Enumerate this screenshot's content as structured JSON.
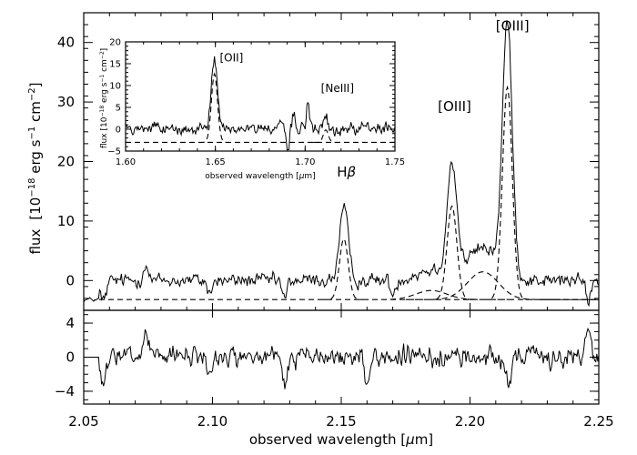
{
  "chart_data": [
    {
      "type": "line",
      "role": "main-spectrum",
      "title": "",
      "xlabel": "observed wavelength [μm]",
      "ylabel": "flux [10^-18 erg s^-1 cm^-2]",
      "ylabel_parts": {
        "flux": "flux",
        "unit_open": "[10",
        "exp1": "−18",
        "erg": " erg s",
        "exp2": "−1",
        "cm": " cm",
        "exp3": "−2",
        "unit_close": "]"
      },
      "xlabel_parts": {
        "text": "observed wavelength [",
        "mu": "μ",
        "unit": "m]"
      },
      "xlim": [
        2.05,
        2.25
      ],
      "ylim": [
        -5,
        45
      ],
      "x_ticks": [
        2.05,
        2.1,
        2.15,
        2.2,
        2.25
      ],
      "x_tick_labels": [
        "2.05",
        "2.10",
        "2.15",
        "2.20",
        "2.25"
      ],
      "y_ticks": [
        0,
        10,
        20,
        30,
        40
      ],
      "y_tick_labels": [
        "0",
        "10",
        "20",
        "30",
        "40"
      ],
      "continuum_offset": -3.2,
      "continuum_start": 2.056,
      "emission_lines": [
        {
          "label": "Hβ",
          "label_base": "H",
          "label_greek": "β",
          "center": 2.151,
          "amplitude": 12.0,
          "sigma": 0.0017,
          "label_x": 2.152,
          "label_y": 17.5
        },
        {
          "label": "[OIII]",
          "center": 2.193,
          "amplitude": 18.5,
          "sigma": 0.0019,
          "label_x": 2.194,
          "label_y": 28.5
        },
        {
          "label": "[OIII]",
          "center": 2.2145,
          "amplitude": 42.0,
          "sigma": 0.0019,
          "label_x": 2.2165,
          "label_y": 42.0
        },
        {
          "label": "",
          "center": 2.185,
          "amplitude": 1.8,
          "sigma": 0.006
        },
        {
          "label": "",
          "center": 2.205,
          "amplitude": 5.5,
          "sigma": 0.006
        }
      ],
      "spectrum_features": [
        {
          "x": 2.0575,
          "depth": -3.5,
          "width": 0.0012
        },
        {
          "x": 2.074,
          "depth": 3.0,
          "width": 0.0009
        },
        {
          "x": 2.128,
          "depth": -3.2,
          "width": 0.0009
        },
        {
          "x": 2.099,
          "depth": -2.2,
          "width": 0.0009
        },
        {
          "x": 2.246,
          "depth": -3.0,
          "width": 0.0011
        },
        {
          "x": 2.17,
          "depth": -2.5,
          "width": 0.0009
        }
      ],
      "noise_amplitude": 1.1
    },
    {
      "type": "line",
      "role": "residuals",
      "xlim": [
        2.05,
        2.25
      ],
      "ylim": [
        -5.5,
        5.5
      ],
      "y_ticks": [
        -4,
        0,
        4
      ],
      "y_tick_labels": [
        "−4",
        "0",
        "4"
      ],
      "features": [
        {
          "x": 2.0575,
          "depth": -3.6,
          "width": 0.0012
        },
        {
          "x": 2.074,
          "depth": 3.0,
          "width": 0.0009
        },
        {
          "x": 2.128,
          "depth": -3.5,
          "width": 0.0009
        },
        {
          "x": 2.099,
          "depth": -2.0,
          "width": 0.0009
        },
        {
          "x": 2.246,
          "depth": 3.2,
          "width": 0.0009
        },
        {
          "x": 2.16,
          "depth": -2.6,
          "width": 0.0009
        },
        {
          "x": 2.215,
          "depth": -2.7,
          "width": 0.0009
        }
      ],
      "noise_amplitude": 1.1
    },
    {
      "type": "line",
      "role": "inset-spectrum",
      "xlabel": "observed wavelength [μm]",
      "xlabel_parts": {
        "text": "observed wavelength [",
        "mu": "μ",
        "unit": "m]"
      },
      "ylabel": "flux [10^-18 erg s^-1 cm^-2]",
      "ylabel_parts": {
        "flux": "flux",
        "unit_open": "[10",
        "exp1": "−18",
        "erg": " erg s",
        "exp2": "−1",
        "cm": " cm",
        "exp3": "−2",
        "unit_close": "]"
      },
      "xlim": [
        1.6,
        1.75
      ],
      "ylim": [
        -5,
        20
      ],
      "x_ticks": [
        1.6,
        1.65,
        1.7,
        1.75
      ],
      "x_tick_labels": [
        "1.60",
        "1.65",
        "1.70",
        "1.75"
      ],
      "y_ticks": [
        -5,
        0,
        5,
        10,
        15,
        20
      ],
      "y_tick_labels": [
        "−5",
        "0",
        "5",
        "10",
        "15",
        "20"
      ],
      "continuum_offset": -3.0,
      "emission_lines": [
        {
          "label": "[OII]",
          "center": 1.6495,
          "amplitude": 16.5,
          "sigma": 0.0017,
          "label_x": 1.659,
          "label_y": 15.5
        },
        {
          "label": "[NeIII]",
          "center": 1.7115,
          "amplitude": 3.0,
          "sigma": 0.0014,
          "label_x": 1.718,
          "label_y": 8.5
        }
      ],
      "spectrum_features": [
        {
          "x": 1.6905,
          "depth": -6.0,
          "width": 0.0007
        },
        {
          "x": 1.7015,
          "depth": 6.0,
          "width": 0.0008
        },
        {
          "x": 1.6935,
          "depth": 4.0,
          "width": 0.0007
        }
      ],
      "noise_amplitude": 1.3
    }
  ]
}
